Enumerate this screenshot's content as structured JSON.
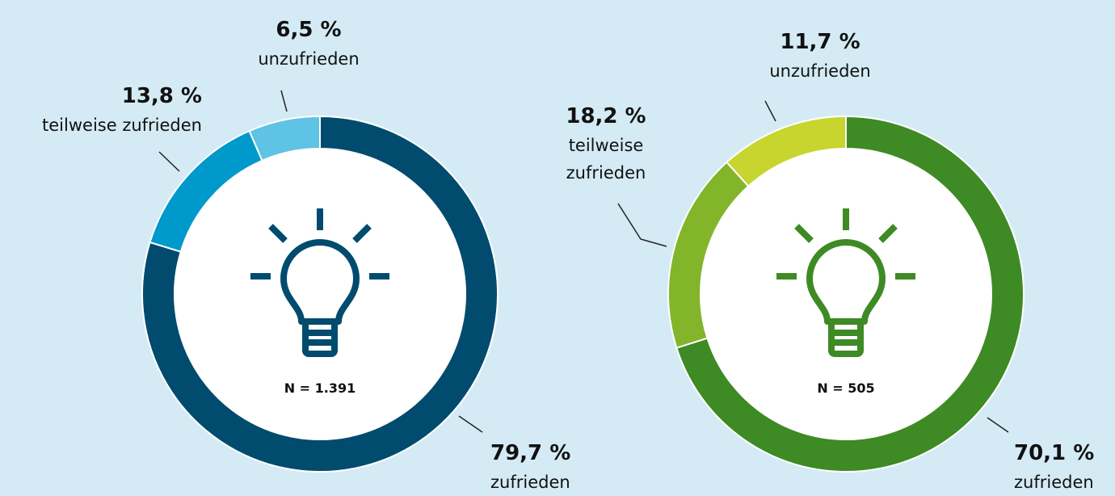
{
  "chart_data": [
    {
      "type": "pie",
      "categories": [
        "zufrieden",
        "teilweise zufrieden",
        "unzufrieden"
      ],
      "values": [
        79.7,
        13.8,
        6.5
      ],
      "value_labels": [
        "79,7 %",
        "13,8 %",
        "6,5 %"
      ],
      "colors": [
        "#004b6e",
        "#0099cc",
        "#5ec3e4"
      ],
      "annotation": "N = 1.391"
    },
    {
      "type": "pie",
      "categories": [
        "zufrieden",
        "teilweise zufrieden",
        "unzufrieden"
      ],
      "values": [
        70.1,
        18.2,
        11.7
      ],
      "value_labels": [
        "70,1 %",
        "18,2 %",
        "11,7 %"
      ],
      "colors": [
        "#3e8a24",
        "#82b52a",
        "#c7d52e"
      ],
      "annotation": "N = 505"
    }
  ]
}
